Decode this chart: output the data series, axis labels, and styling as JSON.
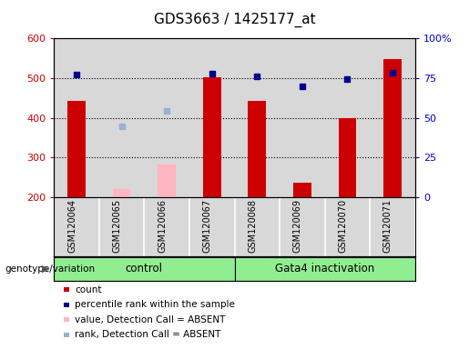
{
  "title": "GDS3663 / 1425177_at",
  "samples": [
    "GSM120064",
    "GSM120065",
    "GSM120066",
    "GSM120067",
    "GSM120068",
    "GSM120069",
    "GSM120070",
    "GSM120071"
  ],
  "count_present": [
    443,
    null,
    null,
    502,
    443,
    237,
    400,
    547
  ],
  "count_absent": [
    null,
    220,
    283,
    null,
    null,
    null,
    null,
    null
  ],
  "rank_present": [
    510,
    null,
    null,
    512,
    505,
    480,
    497,
    514
  ],
  "rank_absent": [
    null,
    378,
    418,
    null,
    null,
    null,
    null,
    null
  ],
  "ylim_left": [
    200,
    600
  ],
  "ylim_right": [
    0,
    100
  ],
  "y_ticks_left": [
    200,
    300,
    400,
    500,
    600
  ],
  "y_ticks_right": [
    0,
    25,
    50,
    75,
    100
  ],
  "y_tick_labels_right": [
    "0",
    "25",
    "50",
    "75",
    "100%"
  ],
  "groups": [
    {
      "label": "control",
      "start": 0,
      "end": 3,
      "color": "#90ee90"
    },
    {
      "label": "Gata4 inactivation",
      "start": 4,
      "end": 7,
      "color": "#90ee90"
    }
  ],
  "bar_width": 0.4,
  "bar_color_present": "#cc0000",
  "bar_color_absent": "#ffb6c1",
  "marker_color_present": "#00008b",
  "marker_color_absent": "#9ab0d0",
  "bar_bottom": 200,
  "legend_items": [
    {
      "label": "count",
      "color": "#cc0000",
      "type": "square"
    },
    {
      "label": "percentile rank within the sample",
      "color": "#00008b",
      "type": "square"
    },
    {
      "label": "value, Detection Call = ABSENT",
      "color": "#ffb6c1",
      "type": "square"
    },
    {
      "label": "rank, Detection Call = ABSENT",
      "color": "#9ab0d0",
      "type": "square"
    }
  ],
  "group_label": "genotype/variation",
  "title_fontsize": 11,
  "tick_fontsize": 8,
  "axis_label_color_left": "#cc0000",
  "axis_label_color_right": "#0000cc",
  "plot_bg_color": "#d8d8d8",
  "fig_bg_color": "#ffffff",
  "dotted_gridlines": [
    300,
    400,
    500
  ]
}
